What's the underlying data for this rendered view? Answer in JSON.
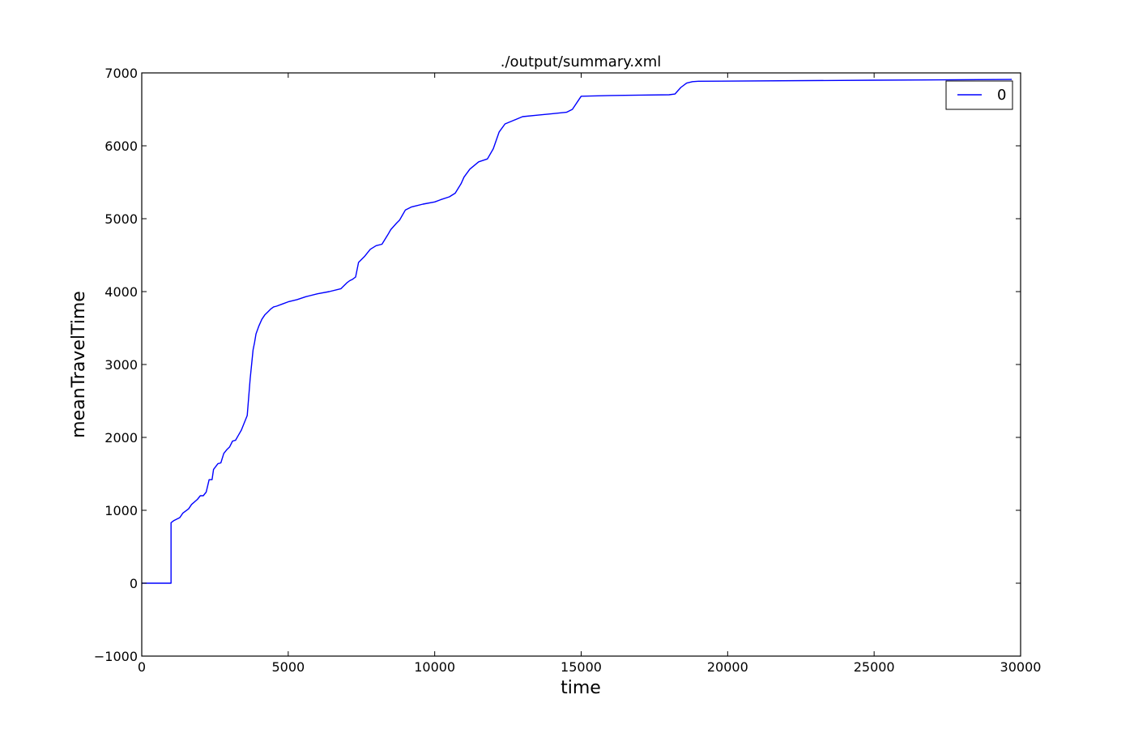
{
  "chart_data": {
    "type": "line",
    "title": "./output/summary.xml",
    "xlabel": "time",
    "ylabel": "meanTravelTime",
    "xlim": [
      0,
      30000
    ],
    "ylim": [
      -1000,
      7000
    ],
    "xticks": [
      0,
      5000,
      10000,
      15000,
      20000,
      25000,
      30000
    ],
    "xtick_labels": [
      "0",
      "5000",
      "10000",
      "15000",
      "20000",
      "25000",
      "30000"
    ],
    "yticks": [
      -1000,
      0,
      1000,
      2000,
      3000,
      4000,
      5000,
      6000,
      7000
    ],
    "ytick_labels": [
      "−1000",
      "0",
      "1000",
      "2000",
      "3000",
      "4000",
      "5000",
      "6000",
      "7000"
    ],
    "grid": false,
    "legend": {
      "position": "top-right",
      "entries": [
        "0"
      ]
    },
    "series": [
      {
        "name": "0",
        "color": "#0000ff",
        "x": [
          0,
          1000,
          1000,
          1100,
          1300,
          1400,
          1600,
          1700,
          1900,
          2000,
          2100,
          2200,
          2300,
          2400,
          2450,
          2600,
          2700,
          2800,
          2900,
          3000,
          3100,
          3200,
          3300,
          3400,
          3500,
          3600,
          3700,
          3750,
          3800,
          3850,
          3900,
          4000,
          4100,
          4200,
          4300,
          4400,
          4500,
          4600,
          4800,
          5000,
          5300,
          5600,
          6000,
          6400,
          6800,
          7000,
          7100,
          7200,
          7300,
          7400,
          7600,
          7800,
          8000,
          8200,
          8400,
          8500,
          8700,
          8800,
          8900,
          9000,
          9200,
          9600,
          10000,
          10200,
          10500,
          10700,
          10900,
          11000,
          11200,
          11500,
          11800,
          12000,
          12200,
          12400,
          12700,
          13000,
          13500,
          14000,
          14500,
          14700,
          14900,
          15000,
          16000,
          17000,
          18000,
          18200,
          18400,
          18600,
          18800,
          19000,
          25000,
          29700
        ],
        "y": [
          0,
          0,
          830,
          860,
          900,
          960,
          1020,
          1080,
          1150,
          1200,
          1200,
          1250,
          1420,
          1420,
          1560,
          1640,
          1650,
          1780,
          1830,
          1870,
          1950,
          1960,
          2030,
          2100,
          2200,
          2300,
          2800,
          3000,
          3200,
          3300,
          3420,
          3530,
          3620,
          3680,
          3720,
          3760,
          3790,
          3800,
          3830,
          3860,
          3890,
          3930,
          3970,
          4000,
          4040,
          4120,
          4150,
          4170,
          4200,
          4400,
          4480,
          4580,
          4630,
          4650,
          4780,
          4850,
          4940,
          4980,
          5050,
          5120,
          5160,
          5200,
          5230,
          5260,
          5300,
          5350,
          5480,
          5570,
          5680,
          5780,
          5820,
          5960,
          6190,
          6300,
          6350,
          6400,
          6420,
          6440,
          6460,
          6500,
          6620,
          6680,
          6690,
          6695,
          6700,
          6710,
          6800,
          6860,
          6880,
          6885,
          6900,
          6910
        ]
      }
    ]
  }
}
